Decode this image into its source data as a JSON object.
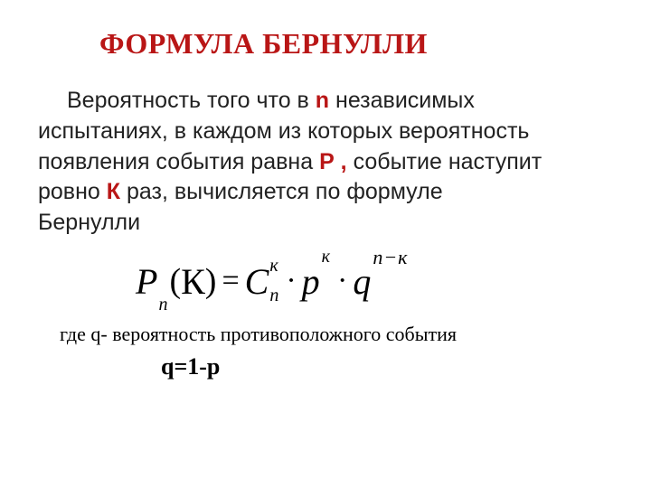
{
  "colors": {
    "title": "#b91616",
    "body": "#222222",
    "highlight": "#b91616",
    "formula": "#000000",
    "background": "#ffffff"
  },
  "title": "ФОРМУЛА БЕРНУЛЛИ",
  "body": {
    "line1a": "Вероятность того что в ",
    "n": "n",
    "line1b": "  независимых",
    "line2": "испытаниях, в каждом из которых вероятность",
    "line3a": "появления события равна ",
    "P": "Р ,",
    "line3b": " событие наступит",
    "line4a": "ровно ",
    "K": "К",
    "line4b": " раз, вычисляется по формуле",
    "line5": "Бернулли"
  },
  "formula": {
    "P": "P",
    "P_sub": "n",
    "open": "(",
    "arg": "К",
    "close": ")",
    "eq": "=",
    "C": "C",
    "C_sup": "к",
    "C_sub": "n",
    "dot1": "·",
    "p": "p",
    "p_sup": "к",
    "dot2": "·",
    "q": "q",
    "q_sup": "n−к"
  },
  "note": {
    "line": "где  q- вероятность противоположного события",
    "eq": "q=1-p"
  }
}
